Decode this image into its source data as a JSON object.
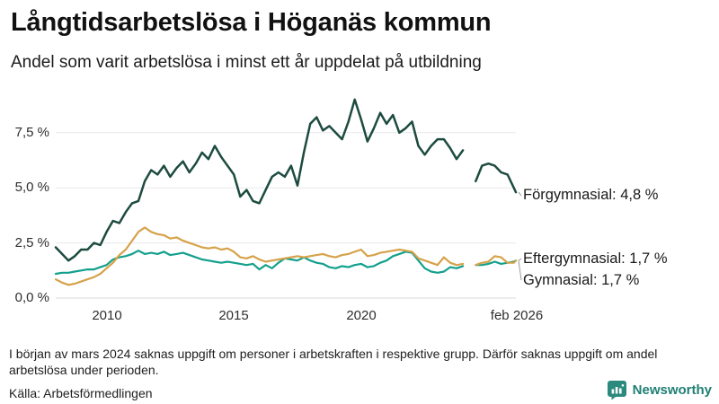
{
  "chart_data": {
    "type": "line",
    "title": "Långtidsarbetslösa i Höganäs kommun",
    "subtitle": "Andel som varit arbetslösa i minst ett år uppdelat på utbildning",
    "xlim": [
      2008.0,
      2026.08
    ],
    "ylim": [
      0,
      9.2
    ],
    "grid": "horizontal",
    "legend_position": "right-edge-annotations",
    "x_unit": "decimal_year",
    "x": [
      2008.0,
      2008.25,
      2008.5,
      2008.75,
      2009.0,
      2009.25,
      2009.5,
      2009.75,
      2010.0,
      2010.25,
      2010.5,
      2010.75,
      2011.0,
      2011.25,
      2011.5,
      2011.75,
      2012.0,
      2012.25,
      2012.5,
      2012.75,
      2013.0,
      2013.25,
      2013.5,
      2013.75,
      2014.0,
      2014.25,
      2014.5,
      2014.75,
      2015.0,
      2015.25,
      2015.5,
      2015.75,
      2016.0,
      2016.25,
      2016.5,
      2016.75,
      2017.0,
      2017.25,
      2017.5,
      2017.75,
      2018.0,
      2018.25,
      2018.5,
      2018.75,
      2019.0,
      2019.25,
      2019.5,
      2019.75,
      2020.0,
      2020.25,
      2020.5,
      2020.75,
      2021.0,
      2021.25,
      2021.5,
      2021.75,
      2022.0,
      2022.25,
      2022.5,
      2022.75,
      2023.0,
      2023.25,
      2023.5,
      2023.75,
      2024.0,
      2024.25,
      2024.5,
      2024.75,
      2025.0,
      2025.25,
      2025.5,
      2025.75,
      2026.0,
      2026.08
    ],
    "series": [
      {
        "name": "Förgymnasial",
        "color": "#1d4b40",
        "last_value_label": "4,8 %",
        "values": [
          2.3,
          2.0,
          1.7,
          1.9,
          2.2,
          2.2,
          2.5,
          2.4,
          3.0,
          3.5,
          3.4,
          3.9,
          4.3,
          4.4,
          5.3,
          5.8,
          5.6,
          6.0,
          5.5,
          5.9,
          6.2,
          5.7,
          6.1,
          6.6,
          6.3,
          6.9,
          6.4,
          6.0,
          5.6,
          4.6,
          4.9,
          4.4,
          4.3,
          4.9,
          5.5,
          5.7,
          5.5,
          6.0,
          5.1,
          6.6,
          7.9,
          8.2,
          7.6,
          7.8,
          7.5,
          7.2,
          8.0,
          9.0,
          8.1,
          7.1,
          7.7,
          8.4,
          7.9,
          8.3,
          7.5,
          7.7,
          8.0,
          6.9,
          6.5,
          6.9,
          7.2,
          7.2,
          6.8,
          6.3,
          6.7,
          null,
          5.3,
          6.0,
          6.1,
          6.0,
          5.7,
          5.6,
          5.0,
          4.8
        ]
      },
      {
        "name": "Eftergymnasial",
        "color": "#d6a24a",
        "last_value_label": "1,7 %",
        "values": [
          0.85,
          0.7,
          0.6,
          0.65,
          0.75,
          0.85,
          0.95,
          1.1,
          1.35,
          1.6,
          1.95,
          2.2,
          2.6,
          3.0,
          3.2,
          3.0,
          2.9,
          2.85,
          2.7,
          2.75,
          2.6,
          2.5,
          2.4,
          2.3,
          2.25,
          2.3,
          2.2,
          2.25,
          2.1,
          1.85,
          1.8,
          1.9,
          1.75,
          1.65,
          1.7,
          1.75,
          1.8,
          1.85,
          1.9,
          1.85,
          1.9,
          1.95,
          2.0,
          1.9,
          1.85,
          1.95,
          2.0,
          2.1,
          2.2,
          1.9,
          1.95,
          2.05,
          2.1,
          2.15,
          2.2,
          2.15,
          2.1,
          1.8,
          1.7,
          1.6,
          1.5,
          1.85,
          1.6,
          1.5,
          1.55,
          null,
          1.5,
          1.6,
          1.65,
          1.9,
          1.85,
          1.6,
          1.6,
          1.7
        ]
      },
      {
        "name": "Gymnasial",
        "color": "#13a08d",
        "last_value_label": "1,7 %",
        "values": [
          1.1,
          1.15,
          1.15,
          1.2,
          1.25,
          1.3,
          1.3,
          1.4,
          1.5,
          1.75,
          1.85,
          1.9,
          2.0,
          2.15,
          2.0,
          2.05,
          2.0,
          2.1,
          1.95,
          2.0,
          2.05,
          1.95,
          1.85,
          1.75,
          1.7,
          1.65,
          1.6,
          1.65,
          1.6,
          1.55,
          1.5,
          1.55,
          1.3,
          1.5,
          1.35,
          1.6,
          1.8,
          1.75,
          1.7,
          1.85,
          1.7,
          1.6,
          1.55,
          1.4,
          1.35,
          1.45,
          1.4,
          1.5,
          1.55,
          1.4,
          1.45,
          1.6,
          1.7,
          1.9,
          2.0,
          2.1,
          2.05,
          1.7,
          1.35,
          1.2,
          1.15,
          1.2,
          1.4,
          1.35,
          1.45,
          null,
          1.5,
          1.5,
          1.55,
          1.65,
          1.55,
          1.6,
          1.65,
          1.7
        ]
      }
    ],
    "y_ticks": [
      {
        "value": 0,
        "label": "0,0 %"
      },
      {
        "value": 2.5,
        "label": "2,5 %"
      },
      {
        "value": 5,
        "label": "5,0 %"
      },
      {
        "value": 7.5,
        "label": "7,5 %"
      }
    ],
    "x_ticks": [
      {
        "value": 2010,
        "label": "2010"
      },
      {
        "value": 2015,
        "label": "2015"
      },
      {
        "value": 2020,
        "label": "2020"
      },
      {
        "value": 2026.08,
        "label": "feb 2026"
      }
    ],
    "annotations": [
      {
        "series": "Förgymnasial",
        "text": "Förgymnasial: 4,8 %"
      },
      {
        "series": "Eftergymnasial",
        "text": "Eftergymnasial: 1,7 %"
      },
      {
        "series": "Gymnasial",
        "text": "Gymnasial: 1,7 %"
      }
    ],
    "data_gap": {
      "around": "mars 2024"
    }
  },
  "footnote": {
    "text": "I början av mars 2024 saknas uppgift om personer i arbetskraften i respektive grupp. Därför saknas uppgift om andel arbetslösa under perioden."
  },
  "source": {
    "label": "Källa: Arbetsförmedlingen"
  },
  "branding": {
    "name": "Newsworthy",
    "icon": "newsworthy-bar-chart-bubble-icon",
    "icon_color": "#2b8a7d",
    "text_color": "#1f7f74"
  }
}
